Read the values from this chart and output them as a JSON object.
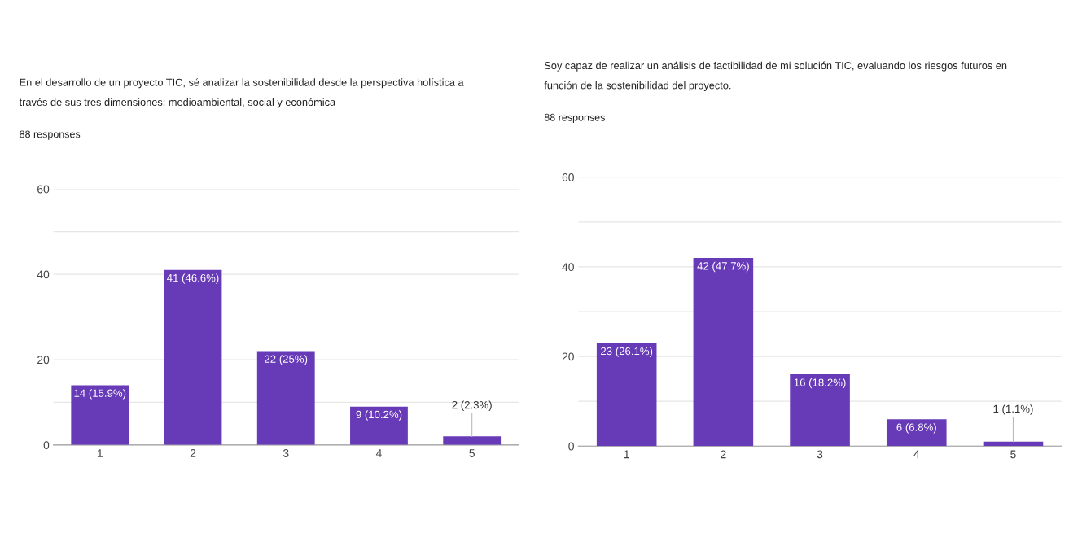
{
  "chart_data": [
    {
      "type": "bar",
      "title": "En el desarrollo de un proyecto TIC, sé analizar la sostenibilidad desde la perspectiva holística a\ntravés de sus tres dimensiones: medioambiental, social y económica",
      "subtitle": "88 responses",
      "categories": [
        "1",
        "2",
        "3",
        "4",
        "5"
      ],
      "values": [
        14,
        41,
        22,
        9,
        2
      ],
      "value_labels": [
        "14 (15.9%)",
        "41 (46.6%)",
        "22 (25%)",
        "9 (10.2%)",
        "2 (2.3%)"
      ],
      "color": "#673ab7",
      "ylim": [
        0,
        60
      ],
      "yticks": [
        0,
        {
          "value": 10,
          "label": null
        },
        20,
        {
          "value": 30,
          "label": null
        },
        40,
        {
          "value": 50,
          "label": null
        },
        60
      ],
      "grid": "y"
    },
    {
      "type": "bar",
      "title": "Soy capaz de realizar un análisis de factibilidad de mi solución TIC, evaluando los riesgos futuros en\nfunción de la sostenibilidad del proyecto.",
      "subtitle": "88 responses",
      "categories": [
        "1",
        "2",
        "3",
        "4",
        "5"
      ],
      "values": [
        23,
        42,
        16,
        6,
        1
      ],
      "value_labels": [
        "23 (26.1%)",
        "42 (47.7%)",
        "16 (18.2%)",
        "6 (6.8%)",
        "1 (1.1%)"
      ],
      "color": "#673ab7",
      "ylim": [
        0,
        60
      ],
      "yticks": [
        0,
        {
          "value": 10,
          "label": null
        },
        20,
        {
          "value": 30,
          "label": null
        },
        40,
        {
          "value": 50,
          "label": null
        },
        60
      ],
      "grid": "y"
    }
  ]
}
